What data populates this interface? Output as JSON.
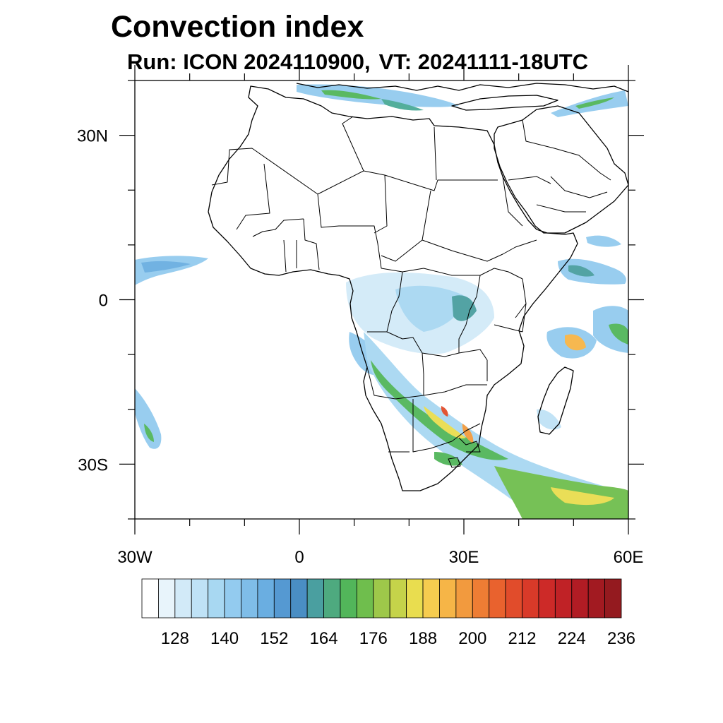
{
  "title": "Convection index",
  "subtitle": {
    "run_label": "Run: ICON 2024110900,",
    "vt_label": "VT: 20241111-18UTC"
  },
  "map": {
    "projection": "cylindrical-equidistant",
    "lon_range": [
      -30,
      60
    ],
    "lat_range": [
      -40,
      40
    ],
    "lon_ticks": [
      {
        "value": -30,
        "label": "30W"
      },
      {
        "value": 0,
        "label": "0"
      },
      {
        "value": 30,
        "label": "30E"
      },
      {
        "value": 60,
        "label": "60E"
      }
    ],
    "lat_ticks": [
      {
        "value": 30,
        "label": "30N"
      },
      {
        "value": 0,
        "label": "0"
      },
      {
        "value": -30,
        "label": "30S"
      }
    ],
    "field": "convection index",
    "features": "coastlines and country borders of Africa, Arabian Peninsula and Madagascar"
  },
  "colorbar": {
    "orientation": "horizontal",
    "labels": [
      "128",
      "140",
      "152",
      "164",
      "176",
      "188",
      "200",
      "212",
      "224",
      "236"
    ],
    "colors": [
      "#ffffff",
      "#e8f4fb",
      "#d2eaf8",
      "#bfe2f6",
      "#a8d8f2",
      "#93cbef",
      "#7fbde8",
      "#6aaee1",
      "#5599d2",
      "#4a8ec4",
      "#4a9fa0",
      "#4eaa7f",
      "#52b65a",
      "#6fbe4d",
      "#9ec84a",
      "#c5d34a",
      "#e9dd4f",
      "#f6cc4f",
      "#f6b547",
      "#f29a3e",
      "#ee7d34",
      "#e9622e",
      "#e14c2b",
      "#d93a29",
      "#cd2a28",
      "#c02226",
      "#b11c24",
      "#a21a21",
      "#941a1f"
    ]
  }
}
